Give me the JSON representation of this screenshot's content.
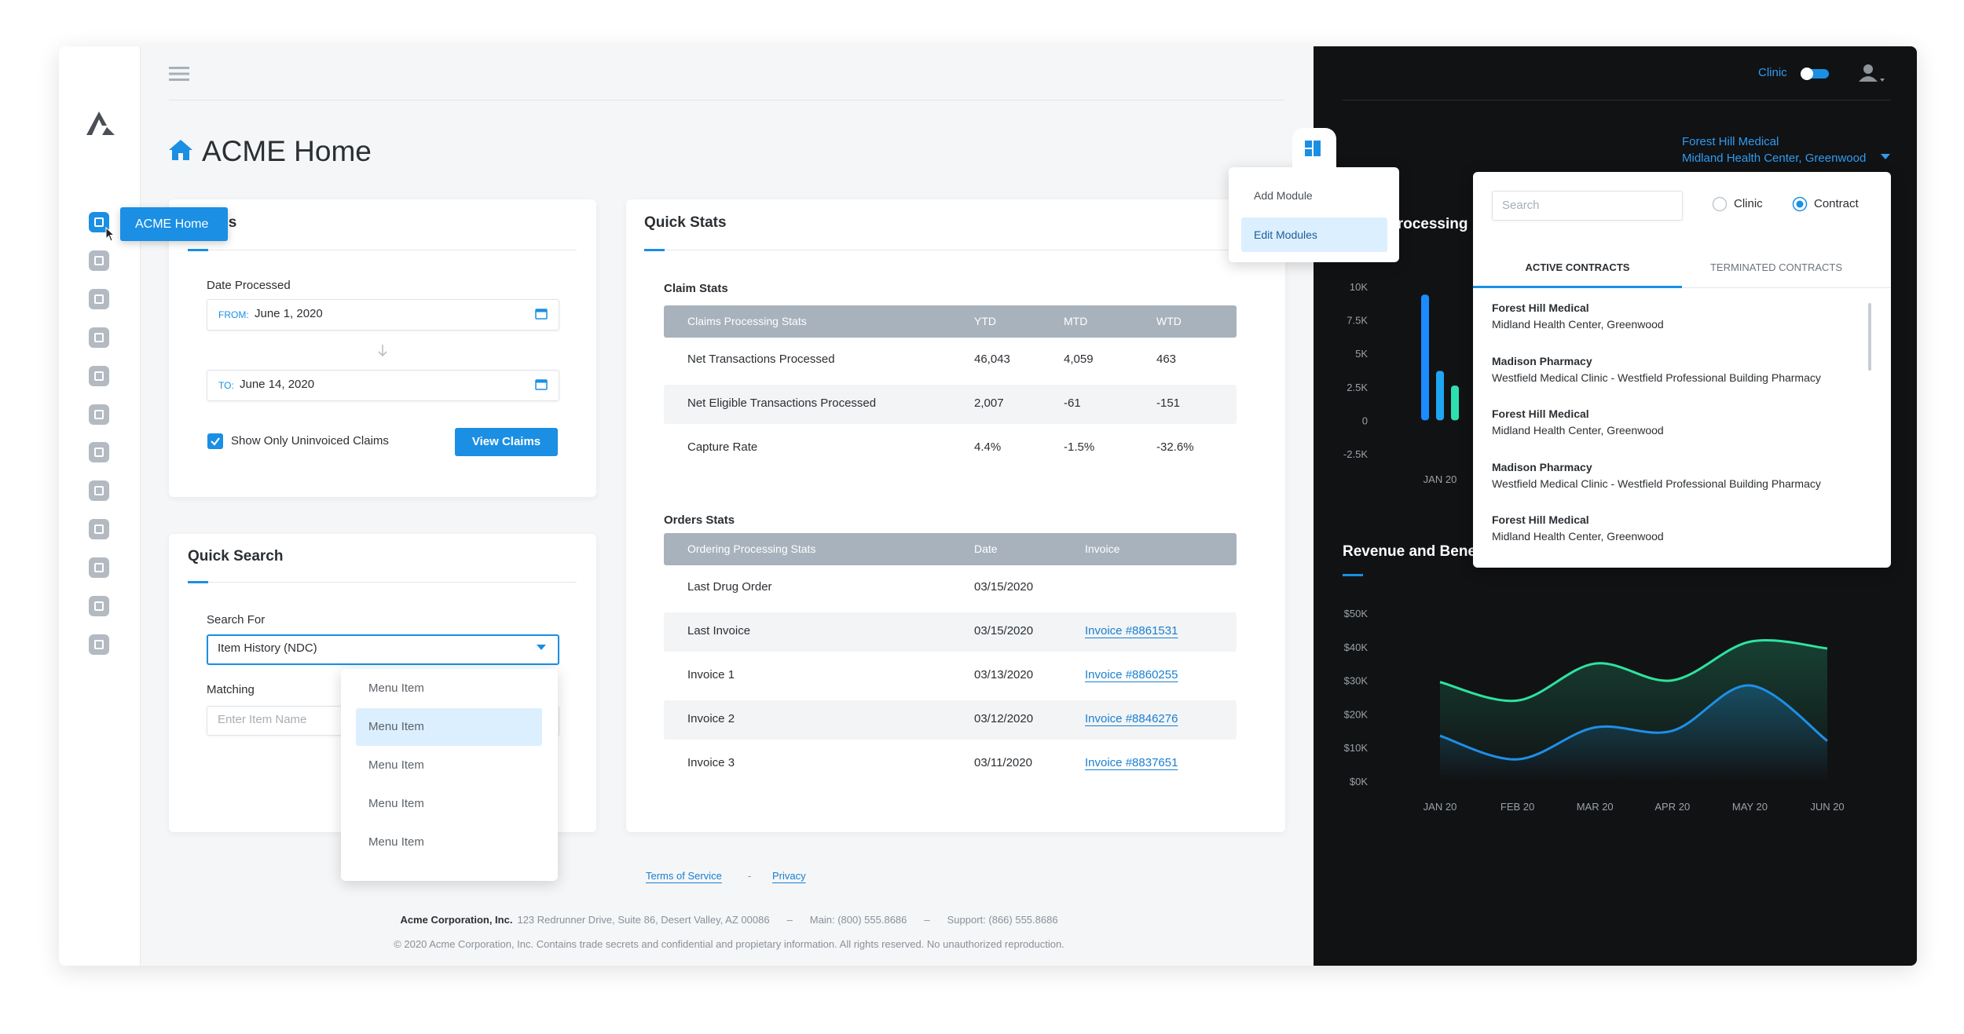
{
  "sidebar": {
    "tooltip": "ACME Home"
  },
  "header": {
    "title": "ACME Home"
  },
  "claims_card": {
    "title": "Claims",
    "date_label": "Date Processed",
    "from_label": "FROM:",
    "from_value": "June 1, 2020",
    "to_label": "TO:",
    "to_value": "June 14, 2020",
    "checkbox_label": "Show Only Uninvoiced Claims",
    "button": "View Claims"
  },
  "quick_search": {
    "title": "Quick Search",
    "search_for_label": "Search For",
    "search_for_value": "Item History (NDC)",
    "matching_label": "Matching",
    "matching_placeholder": "Enter Item Name",
    "menu_items": [
      "Menu Item",
      "Menu Item",
      "Menu Item",
      "Menu Item",
      "Menu Item"
    ]
  },
  "quick_stats": {
    "title": "Quick Stats",
    "claim_stats": {
      "title": "Claim Stats",
      "columns": [
        "Claims Processing Stats",
        "YTD",
        "MTD",
        "WTD"
      ],
      "rows": [
        [
          "Net Transactions Processed",
          "46,043",
          "4,059",
          "463"
        ],
        [
          "Net Eligible Transactions Processed",
          "2,007",
          "-61",
          "-151"
        ],
        [
          "Capture Rate",
          "4.4%",
          "-1.5%",
          "-32.6%"
        ]
      ]
    },
    "orders_stats": {
      "title": "Orders Stats",
      "columns": [
        "Ordering Processing Stats",
        "Date",
        "Invoice"
      ],
      "rows": [
        [
          "Last Drug Order",
          "03/15/2020"
        ],
        [
          "Last Invoice",
          "03/15/2020",
          "Invoice #8861531"
        ],
        [
          "Invoice 1",
          "03/13/2020",
          "Invoice #8860255"
        ],
        [
          "Invoice 2",
          "03/12/2020",
          "Invoice #8846276"
        ],
        [
          "Invoice 3",
          "03/11/2020",
          "Invoice #8837651"
        ]
      ]
    }
  },
  "footer": {
    "links": [
      "Terms of Service",
      "Privacy"
    ],
    "link_separator": "-",
    "company": "Acme Corporation, Inc.",
    "contact": [
      "123 Redrunner Drive, Suite 86, Desert Valley, AZ 00086",
      "Main: (800) 555.8686",
      "Support: (866) 555.8686"
    ],
    "contact_separator": "–",
    "copyright": "© 2020 Acme Corporation, Inc. Contains trade secrets and confidential and propietary information. All rights reserved. No unauthorized reproduction."
  },
  "modules_menu": {
    "items": [
      "Add Module",
      "Edit Modules"
    ]
  },
  "top_bar": {
    "toggle_label": "Clinic"
  },
  "location": {
    "name": "Forest Hill Medical",
    "detail": "Midland Health Center, Greenwood"
  },
  "contract_picker": {
    "search_placeholder": "Search",
    "radios": [
      "Clinic",
      "Contract"
    ],
    "tabs": [
      "ACTIVE CONTRACTS",
      "TERMINATED CONTRACTS"
    ],
    "items": [
      {
        "name": "Forest Hill Medical",
        "detail": "Midland Health Center, Greenwood"
      },
      {
        "name": "Madison Pharmacy",
        "detail": "Westfield Medical Clinic - Westfield Professional Building Pharmacy"
      },
      {
        "name": "Forest Hill Medical",
        "detail": "Midland Health Center, Greenwood"
      },
      {
        "name": "Madison Pharmacy",
        "detail": "Westfield Medical Clinic - Westfield Professional Building Pharmacy"
      },
      {
        "name": "Forest Hill Medical",
        "detail": "Midland Health Center, Greenwood"
      }
    ]
  },
  "chart_data": [
    {
      "type": "bar",
      "title": "Claim Processing",
      "categories": [
        "JAN 20"
      ],
      "series": [
        {
          "color": "#1a8cff",
          "values": [
            9400
          ]
        },
        {
          "color": "#1fa6f2",
          "values": [
            3700
          ]
        },
        {
          "color": "#2de0b0",
          "values": [
            2600
          ]
        }
      ],
      "ylim": [
        -2500,
        10000
      ],
      "yticks": [
        {
          "value": -2500,
          "label": "-2.5K"
        },
        0,
        {
          "value": 2500,
          "label": "2.5K"
        },
        {
          "value": 5000,
          "label": "5K"
        },
        {
          "value": 7500,
          "label": "7.5K"
        },
        {
          "value": 10000,
          "label": "10K"
        }
      ]
    },
    {
      "type": "line",
      "title": "Revenue and Benefits",
      "categories": [
        "JAN 20",
        "FEB 20",
        "MAR 20",
        "APR 20",
        "MAY 20",
        "JUN 20"
      ],
      "series": [
        {
          "color": "#2de3a0",
          "values": [
            29500,
            24000,
            35000,
            30000,
            41500,
            39500
          ]
        },
        {
          "color": "#1e8fe8",
          "values": [
            13500,
            6500,
            16000,
            15000,
            28500,
            12000
          ]
        }
      ],
      "ylim": [
        0,
        50000
      ],
      "yticks": [
        {
          "value": 0,
          "label": "$0K"
        },
        {
          "value": 10000,
          "label": "$10K"
        },
        {
          "value": 20000,
          "label": "$20K"
        },
        {
          "value": 30000,
          "label": "$30K"
        },
        {
          "value": 40000,
          "label": "$40K"
        },
        {
          "value": 50000,
          "label": "$50K"
        }
      ]
    }
  ]
}
